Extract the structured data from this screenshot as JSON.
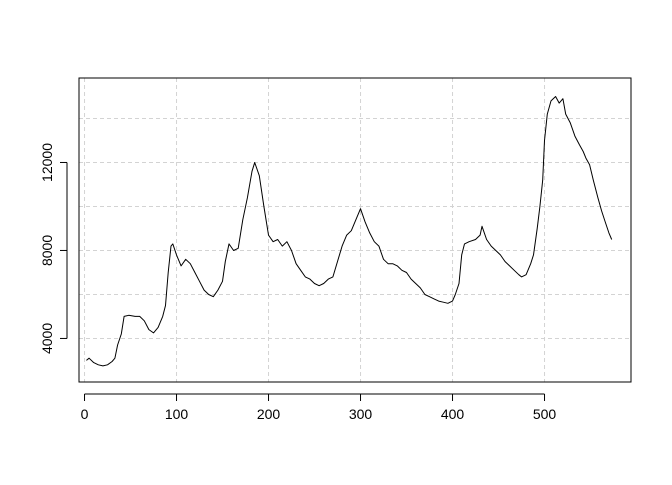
{
  "chart_data": {
    "type": "line",
    "title": "",
    "xlabel": "",
    "ylabel": "",
    "xlim": [
      -6,
      594
    ],
    "ylim": [
      2020,
      15840
    ],
    "x_ticks": [
      0,
      100,
      200,
      300,
      400,
      500
    ],
    "y_ticks": [
      4000,
      8000,
      12000
    ],
    "x_grid": [
      0,
      100,
      200,
      300,
      400,
      500
    ],
    "y_grid": [
      4000,
      6000,
      8000,
      10000,
      12000,
      14000
    ],
    "grid": true,
    "grid_style": "dashed",
    "line_color": "#000000",
    "grid_color": "#d3d3d3",
    "series": [
      {
        "points": [
          [
            2,
            3000
          ],
          [
            5,
            3100
          ],
          [
            10,
            2900
          ],
          [
            15,
            2800
          ],
          [
            20,
            2750
          ],
          [
            25,
            2800
          ],
          [
            30,
            2950
          ],
          [
            33,
            3100
          ],
          [
            36,
            3700
          ],
          [
            40,
            4200
          ],
          [
            43,
            5000
          ],
          [
            48,
            5050
          ],
          [
            55,
            5000
          ],
          [
            60,
            5000
          ],
          [
            65,
            4800
          ],
          [
            70,
            4400
          ],
          [
            75,
            4250
          ],
          [
            80,
            4500
          ],
          [
            85,
            5000
          ],
          [
            88,
            5500
          ],
          [
            91,
            7000
          ],
          [
            94,
            8200
          ],
          [
            96,
            8300
          ],
          [
            100,
            7800
          ],
          [
            105,
            7300
          ],
          [
            110,
            7600
          ],
          [
            115,
            7400
          ],
          [
            120,
            7000
          ],
          [
            125,
            6600
          ],
          [
            130,
            6200
          ],
          [
            135,
            6000
          ],
          [
            140,
            5900
          ],
          [
            145,
            6200
          ],
          [
            150,
            6600
          ],
          [
            153,
            7500
          ],
          [
            157,
            8300
          ],
          [
            162,
            8000
          ],
          [
            167,
            8100
          ],
          [
            172,
            9400
          ],
          [
            177,
            10400
          ],
          [
            182,
            11600
          ],
          [
            185,
            12000
          ],
          [
            190,
            11400
          ],
          [
            195,
            10000
          ],
          [
            200,
            8700
          ],
          [
            205,
            8400
          ],
          [
            210,
            8500
          ],
          [
            215,
            8200
          ],
          [
            220,
            8400
          ],
          [
            225,
            8000
          ],
          [
            230,
            7400
          ],
          [
            235,
            7100
          ],
          [
            240,
            6800
          ],
          [
            245,
            6700
          ],
          [
            250,
            6500
          ],
          [
            255,
            6400
          ],
          [
            260,
            6500
          ],
          [
            265,
            6700
          ],
          [
            270,
            6800
          ],
          [
            275,
            7500
          ],
          [
            280,
            8200
          ],
          [
            285,
            8700
          ],
          [
            290,
            8900
          ],
          [
            295,
            9400
          ],
          [
            300,
            9900
          ],
          [
            305,
            9300
          ],
          [
            310,
            8800
          ],
          [
            315,
            8400
          ],
          [
            320,
            8200
          ],
          [
            325,
            7600
          ],
          [
            330,
            7400
          ],
          [
            335,
            7400
          ],
          [
            340,
            7300
          ],
          [
            345,
            7100
          ],
          [
            350,
            7000
          ],
          [
            355,
            6700
          ],
          [
            360,
            6500
          ],
          [
            365,
            6300
          ],
          [
            370,
            6000
          ],
          [
            375,
            5900
          ],
          [
            380,
            5800
          ],
          [
            385,
            5700
          ],
          [
            390,
            5650
          ],
          [
            395,
            5600
          ],
          [
            400,
            5700
          ],
          [
            403,
            6000
          ],
          [
            407,
            6500
          ],
          [
            410,
            7800
          ],
          [
            413,
            8300
          ],
          [
            418,
            8400
          ],
          [
            425,
            8500
          ],
          [
            430,
            8700
          ],
          [
            432,
            9100
          ],
          [
            437,
            8500
          ],
          [
            442,
            8200
          ],
          [
            447,
            8000
          ],
          [
            452,
            7800
          ],
          [
            457,
            7500
          ],
          [
            462,
            7300
          ],
          [
            467,
            7100
          ],
          [
            472,
            6900
          ],
          [
            475,
            6800
          ],
          [
            480,
            6900
          ],
          [
            485,
            7400
          ],
          [
            488,
            7800
          ],
          [
            492,
            9000
          ],
          [
            495,
            10000
          ],
          [
            498,
            11200
          ],
          [
            500,
            13000
          ],
          [
            503,
            14200
          ],
          [
            507,
            14800
          ],
          [
            512,
            15000
          ],
          [
            516,
            14700
          ],
          [
            520,
            14900
          ],
          [
            523,
            14200
          ],
          [
            528,
            13800
          ],
          [
            533,
            13200
          ],
          [
            538,
            12800
          ],
          [
            542,
            12500
          ],
          [
            545,
            12200
          ],
          [
            549,
            11900
          ],
          [
            553,
            11200
          ],
          [
            558,
            10400
          ],
          [
            562,
            9800
          ],
          [
            566,
            9300
          ],
          [
            570,
            8800
          ],
          [
            573,
            8500
          ]
        ]
      }
    ]
  }
}
